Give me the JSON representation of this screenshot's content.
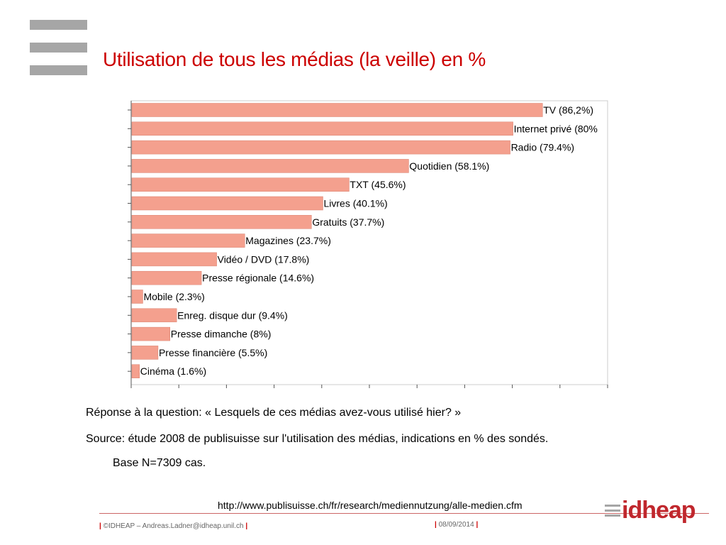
{
  "slide": {
    "title": "Utilisation de tous les médias (la veille) en %",
    "question": "Réponse à la question: « Lesquels de ces médias avez-vous utilisé hier? »",
    "source_line1": "Source: étude 2008 de publisuisse sur l'utilisation des médias, indications en % des sondés.",
    "source_line2": "Base N=7309 cas.",
    "url": "http://www.publisuisse.ch/fr/research/mediennutzung/alle-medien.cfm",
    "footer_sep": "|",
    "footer_left": "©IDHEAP – Andreas.Ladner@idheap.unil.ch",
    "footer_date": "08/09/2014",
    "logo_word": "idheap"
  },
  "colors": {
    "accent": "#cc0000",
    "bar": "#f4a08e",
    "bar_stroke": "#d9806e"
  },
  "chart_data": {
    "type": "bar",
    "orientation": "horizontal",
    "categories": [
      "TV (86,2%)",
      "Internet privé (80%",
      "Radio (79.4%)",
      "Quotidien (58.1%)",
      "TXT (45.6%)",
      "Livres (40.1%)",
      "Gratuits (37.7%)",
      "Magazines (23.7%)",
      "Vidéo / DVD (17.8%)",
      "Presse régionale (14.6%)",
      "Mobile (2.3%)",
      "Enreg. disque dur (9.4%)",
      "Presse dimanche (8%)",
      "Presse financière (5.5%)",
      "Cinéma (1.6%)"
    ],
    "values": [
      86.2,
      80,
      79.4,
      58.1,
      45.6,
      40.1,
      37.7,
      23.7,
      17.8,
      14.6,
      2.3,
      9.4,
      8,
      5.5,
      1.6
    ],
    "xlim": [
      0,
      100
    ],
    "grid": false
  }
}
